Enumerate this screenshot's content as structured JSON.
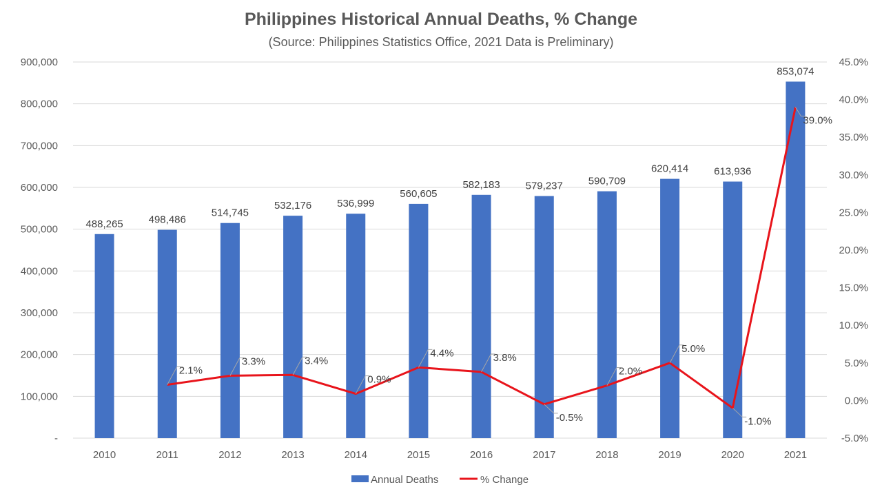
{
  "chart_data": {
    "type": "bar",
    "title": "Philippines Historical Annual Deaths, % Change",
    "subtitle": "(Source: Philippines Statistics Office, 2021 Data is Preliminary)",
    "categories": [
      "2010",
      "2011",
      "2012",
      "2013",
      "2014",
      "2015",
      "2016",
      "2017",
      "2018",
      "2019",
      "2020",
      "2021"
    ],
    "series": [
      {
        "name": "Annual Deaths",
        "type": "bar",
        "axis": "left",
        "color": "#4472C4",
        "values": [
          488265,
          498486,
          514745,
          532176,
          536999,
          560605,
          582183,
          579237,
          590709,
          620414,
          613936,
          853074
        ],
        "labels": [
          "488,265",
          "498,486",
          "514,745",
          "532,176",
          "536,999",
          "560,605",
          "582,183",
          "579,237",
          "590,709",
          "620,414",
          "613,936",
          "853,074"
        ]
      },
      {
        "name": "% Change",
        "type": "line",
        "axis": "right",
        "color": "#E8141B",
        "values": [
          null,
          2.1,
          3.3,
          3.4,
          0.9,
          4.4,
          3.8,
          -0.5,
          2.0,
          5.0,
          -1.0,
          39.0
        ],
        "labels": [
          "",
          "2.1%",
          "3.3%",
          "3.4%",
          "0.9%",
          "4.4%",
          "3.8%",
          "-0.5%",
          "2.0%",
          "5.0%",
          "-1.0%",
          "39.0%"
        ]
      }
    ],
    "y_left": {
      "ylim": [
        0,
        900000
      ],
      "ticks": [
        0,
        100000,
        200000,
        300000,
        400000,
        500000,
        600000,
        700000,
        800000,
        900000
      ],
      "tick_labels": [
        "-",
        "100,000",
        "200,000",
        "300,000",
        "400,000",
        "500,000",
        "600,000",
        "700,000",
        "800,000",
        "900,000"
      ]
    },
    "y_right": {
      "ylim": [
        -5,
        45
      ],
      "ticks": [
        -5,
        0,
        5,
        10,
        15,
        20,
        25,
        30,
        35,
        40,
        45
      ],
      "tick_labels": [
        "-5.0%",
        "0.0%",
        "5.0%",
        "10.0%",
        "15.0%",
        "20.0%",
        "25.0%",
        "30.0%",
        "35.0%",
        "40.0%",
        "45.0%"
      ]
    },
    "grid": true,
    "legend_position": "bottom",
    "gridline_color": "#D9D9D9",
    "leader_color": "#A6A6A6"
  }
}
